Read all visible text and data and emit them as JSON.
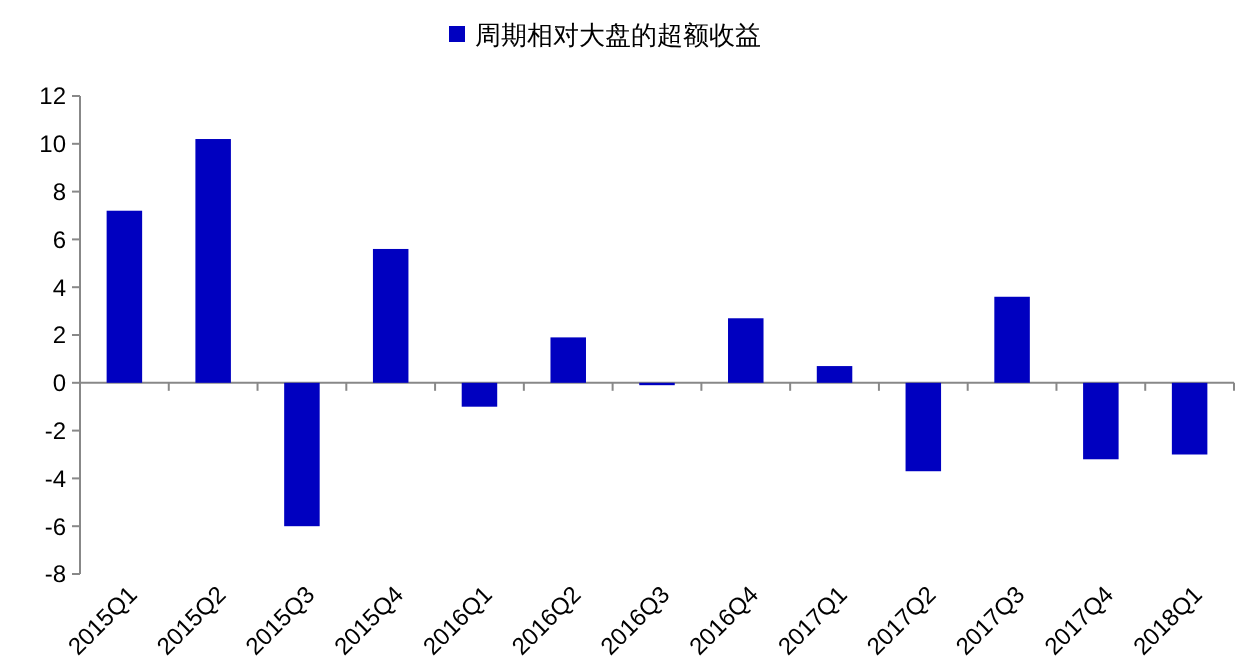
{
  "chart_data": {
    "type": "bar",
    "categories": [
      "2015Q1",
      "2015Q2",
      "2015Q3",
      "2015Q4",
      "2016Q1",
      "2016Q2",
      "2016Q3",
      "2016Q4",
      "2017Q1",
      "2017Q2",
      "2017Q3",
      "2017Q4",
      "2018Q1"
    ],
    "series": [
      {
        "name": "周期相对大盘的超额收益",
        "color": "#0000c0",
        "values": [
          7.2,
          10.2,
          -6.0,
          5.6,
          -1.0,
          1.9,
          -0.1,
          2.7,
          0.7,
          -3.7,
          3.6,
          -3.2,
          -3.0
        ]
      }
    ],
    "ylim": [
      -8,
      12
    ],
    "yticks": [
      -8,
      -6,
      -4,
      -2,
      0,
      2,
      4,
      6,
      8,
      10,
      12
    ],
    "legend": "top"
  }
}
